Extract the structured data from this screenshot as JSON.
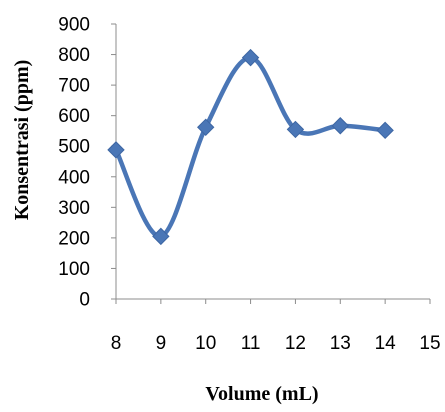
{
  "chart_data": {
    "type": "line",
    "title": "",
    "xlabel": "Volume (mL)",
    "ylabel": "Konsentrasi (ppm)",
    "x": [
      8,
      9,
      10,
      11,
      12,
      13,
      14
    ],
    "series": [
      {
        "name": "",
        "values": [
          488,
          205,
          562,
          790,
          555,
          567,
          552
        ],
        "color": "#4a76b6"
      }
    ],
    "xlim": [
      8,
      15
    ],
    "ylim": [
      0,
      900
    ],
    "xticks": [
      "8",
      "9",
      "10",
      "11",
      "12",
      "13",
      "14",
      "15"
    ],
    "yticks": [
      "0",
      "100",
      "200",
      "300",
      "400",
      "500",
      "600",
      "700",
      "800",
      "900"
    ],
    "smooth": true,
    "marker": "diamond",
    "grid": false,
    "legend": "none"
  }
}
